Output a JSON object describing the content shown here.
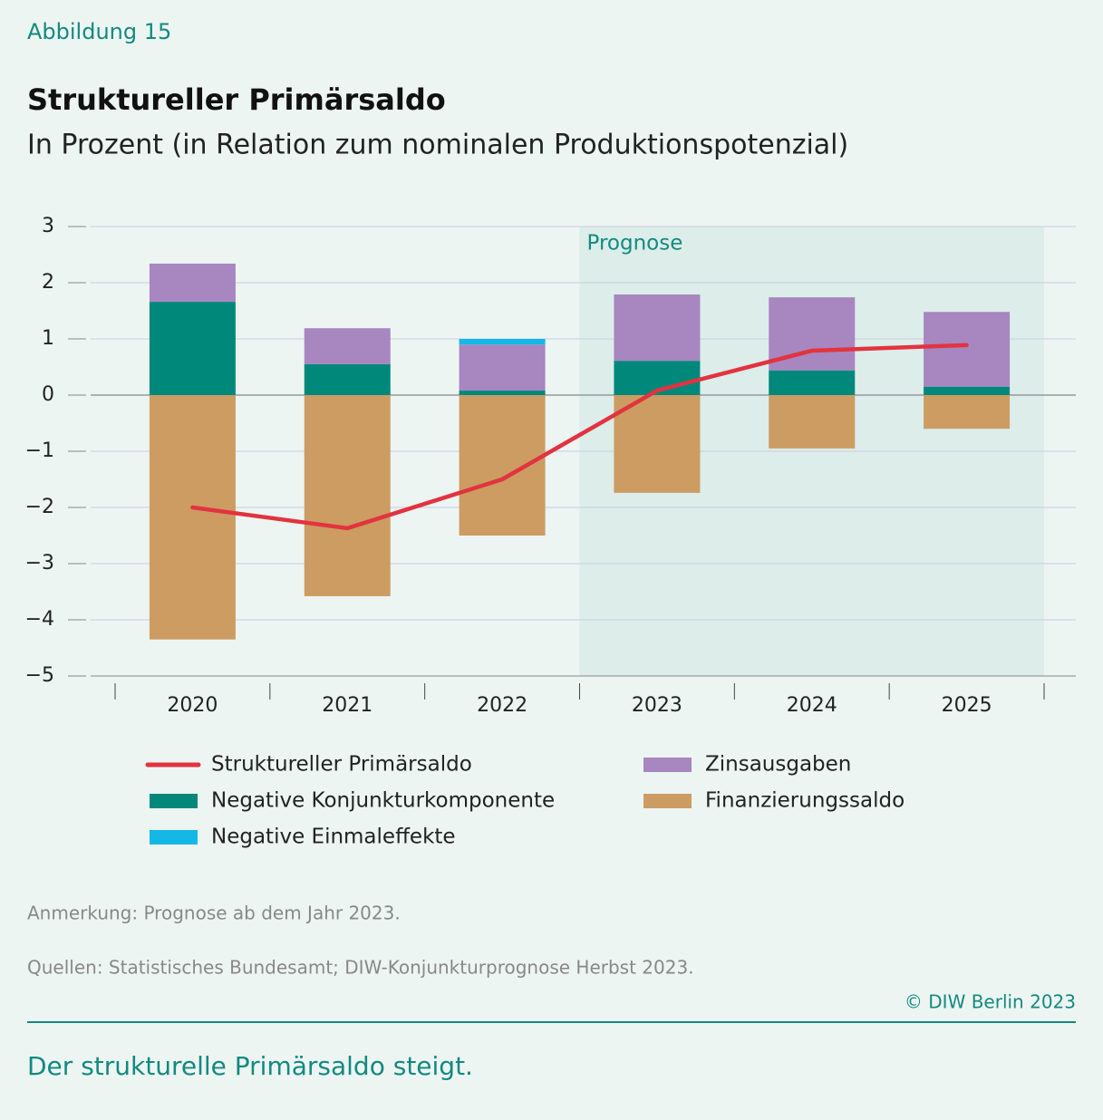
{
  "figure_label": "Abbildung 15",
  "chart_data": {
    "type": "bar",
    "title": "Struktureller Primärsaldo",
    "subtitle": "In Prozent (in Relation zum nominalen Produktionspotenzial)",
    "categories": [
      "2020",
      "2021",
      "2022",
      "2023",
      "2024",
      "2025"
    ],
    "series": [
      {
        "name": "Struktureller Primärsaldo",
        "type": "line",
        "color": "#e2333f",
        "values": [
          -2.0,
          -2.37,
          -1.5,
          0.08,
          0.79,
          0.89
        ]
      },
      {
        "name": "Negative Konjunkturkomponente",
        "color": "#00887a",
        "values": [
          1.66,
          0.55,
          0.08,
          0.61,
          0.44,
          0.15
        ]
      },
      {
        "name": "Zinsausgaben",
        "color": "#a886bf",
        "values": [
          0.68,
          0.64,
          0.82,
          1.18,
          1.3,
          1.33
        ]
      },
      {
        "name": "Negative Einmaleffekte",
        "color": "#14b8e6",
        "values": [
          null,
          null,
          0.1,
          null,
          null,
          null
        ]
      },
      {
        "name": "Finanzierungssaldo",
        "color": "#cc9c62",
        "values": [
          -4.35,
          -3.58,
          -2.5,
          -1.74,
          -0.95,
          -0.6
        ]
      }
    ],
    "ylim": [
      -5,
      3
    ],
    "yticks": [
      {
        "value": -5,
        "label": "−5"
      },
      {
        "value": -4,
        "label": "−4"
      },
      {
        "value": -3,
        "label": "−3"
      },
      {
        "value": -2,
        "label": "−2"
      },
      {
        "value": -1,
        "label": "−1"
      },
      0,
      1,
      2,
      3
    ],
    "grid": true,
    "stacked": true,
    "annotation": "Prognose",
    "shaded_from": "2023"
  },
  "note": "Anmerkung: Prognose ab dem Jahr 2023.",
  "source": "Quellen: Statistisches Bundesamt; DIW-Konjunkturprognose Herbst 2023.",
  "copyright": "© DIW Berlin 2023",
  "footer": "Der strukturelle Primärsaldo steigt."
}
